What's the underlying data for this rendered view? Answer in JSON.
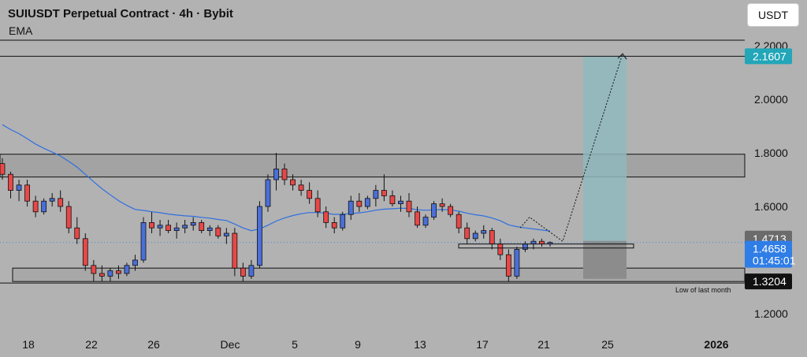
{
  "header": {
    "title": "SUIUSDT Perpetual Contract · 4h · Bybit",
    "indicator": "EMA",
    "currency_button": "USDT"
  },
  "chart_data": {
    "type": "candlestick",
    "title": "SUIUSDT Perpetual Contract · 4h · Bybit",
    "interval": "4h",
    "exchange": "Bybit",
    "indicator": "EMA",
    "y_ticks": [
      "2.2000",
      "2.0000",
      "1.8000",
      "1.6000",
      "1.2000"
    ],
    "x_ticks": [
      "18",
      "22",
      "26",
      "Dec",
      "5",
      "9",
      "13",
      "17",
      "21",
      "25",
      "2026"
    ],
    "price_labels": [
      {
        "value": 2.1607,
        "text": "2.1607",
        "bg": "#22a6b8",
        "fg": "#ffffff"
      },
      {
        "value": 1.4713,
        "text": "1.4713",
        "bg": "#6b6b6b",
        "fg": "#ffffff"
      },
      {
        "value": 1.4658,
        "text": "1.4658",
        "sub": "01:45:01",
        "bg": "#2f7de6",
        "fg": "#ffffff"
      },
      {
        "value": 1.3204,
        "text": "1.3204",
        "bg": "#111111",
        "fg": "#ffffff"
      }
    ],
    "horizontal_lines": [
      2.2,
      2.1607,
      1.3204
    ],
    "zones": [
      {
        "name": "upper-resistance",
        "from": 1.71,
        "to": 1.795
      },
      {
        "name": "monthly-low-zone",
        "from": 1.32,
        "to": 1.37
      },
      {
        "name": "local-support",
        "from": 1.445,
        "to": 1.46
      }
    ],
    "annotation": "Low of last month",
    "position": {
      "target": 2.1607,
      "entry": 1.4713,
      "stop": 1.33
    },
    "ohlc": [
      [
        1.76,
        1.78,
        1.7,
        1.72
      ],
      [
        1.72,
        1.73,
        1.63,
        1.66
      ],
      [
        1.66,
        1.7,
        1.62,
        1.68
      ],
      [
        1.68,
        1.7,
        1.6,
        1.62
      ],
      [
        1.62,
        1.64,
        1.56,
        1.58
      ],
      [
        1.58,
        1.63,
        1.57,
        1.62
      ],
      [
        1.62,
        1.65,
        1.6,
        1.63
      ],
      [
        1.63,
        1.66,
        1.58,
        1.6
      ],
      [
        1.6,
        1.62,
        1.5,
        1.52
      ],
      [
        1.52,
        1.56,
        1.46,
        1.48
      ],
      [
        1.48,
        1.5,
        1.36,
        1.38
      ],
      [
        1.38,
        1.4,
        1.32,
        1.35
      ],
      [
        1.35,
        1.38,
        1.32,
        1.34
      ],
      [
        1.34,
        1.37,
        1.32,
        1.36
      ],
      [
        1.36,
        1.38,
        1.33,
        1.35
      ],
      [
        1.35,
        1.39,
        1.34,
        1.38
      ],
      [
        1.38,
        1.42,
        1.36,
        1.4
      ],
      [
        1.4,
        1.56,
        1.39,
        1.54
      ],
      [
        1.54,
        1.58,
        1.5,
        1.52
      ],
      [
        1.52,
        1.55,
        1.49,
        1.53
      ],
      [
        1.53,
        1.55,
        1.5,
        1.51
      ],
      [
        1.51,
        1.54,
        1.48,
        1.52
      ],
      [
        1.52,
        1.55,
        1.5,
        1.53
      ],
      [
        1.53,
        1.56,
        1.51,
        1.54
      ],
      [
        1.54,
        1.55,
        1.5,
        1.51
      ],
      [
        1.51,
        1.53,
        1.49,
        1.52
      ],
      [
        1.52,
        1.53,
        1.48,
        1.49
      ],
      [
        1.49,
        1.52,
        1.46,
        1.5
      ],
      [
        1.5,
        1.52,
        1.34,
        1.37
      ],
      [
        1.37,
        1.39,
        1.32,
        1.34
      ],
      [
        1.34,
        1.4,
        1.33,
        1.38
      ],
      [
        1.38,
        1.62,
        1.37,
        1.6
      ],
      [
        1.6,
        1.72,
        1.58,
        1.7
      ],
      [
        1.7,
        1.8,
        1.66,
        1.74
      ],
      [
        1.74,
        1.76,
        1.68,
        1.7
      ],
      [
        1.7,
        1.72,
        1.66,
        1.68
      ],
      [
        1.68,
        1.7,
        1.64,
        1.66
      ],
      [
        1.66,
        1.69,
        1.61,
        1.63
      ],
      [
        1.63,
        1.66,
        1.56,
        1.58
      ],
      [
        1.58,
        1.6,
        1.52,
        1.54
      ],
      [
        1.54,
        1.56,
        1.5,
        1.52
      ],
      [
        1.52,
        1.58,
        1.51,
        1.57
      ],
      [
        1.57,
        1.64,
        1.55,
        1.62
      ],
      [
        1.62,
        1.65,
        1.58,
        1.6
      ],
      [
        1.6,
        1.64,
        1.59,
        1.63
      ],
      [
        1.63,
        1.68,
        1.6,
        1.66
      ],
      [
        1.66,
        1.72,
        1.62,
        1.64
      ],
      [
        1.64,
        1.66,
        1.6,
        1.61
      ],
      [
        1.61,
        1.64,
        1.58,
        1.62
      ],
      [
        1.62,
        1.65,
        1.56,
        1.58
      ],
      [
        1.58,
        1.6,
        1.52,
        1.53
      ],
      [
        1.53,
        1.57,
        1.52,
        1.56
      ],
      [
        1.56,
        1.62,
        1.55,
        1.61
      ],
      [
        1.61,
        1.63,
        1.58,
        1.6
      ],
      [
        1.6,
        1.61,
        1.56,
        1.57
      ],
      [
        1.57,
        1.58,
        1.5,
        1.52
      ],
      [
        1.52,
        1.54,
        1.46,
        1.48
      ],
      [
        1.48,
        1.51,
        1.47,
        1.5
      ],
      [
        1.5,
        1.53,
        1.48,
        1.51
      ],
      [
        1.51,
        1.52,
        1.44,
        1.46
      ],
      [
        1.46,
        1.48,
        1.4,
        1.42
      ],
      [
        1.42,
        1.44,
        1.32,
        1.34
      ],
      [
        1.34,
        1.45,
        1.33,
        1.44
      ],
      [
        1.44,
        1.47,
        1.43,
        1.46
      ],
      [
        1.46,
        1.48,
        1.44,
        1.47
      ],
      [
        1.47,
        1.48,
        1.45,
        1.46
      ],
      [
        1.46,
        1.47,
        1.45,
        1.4658
      ]
    ]
  }
}
